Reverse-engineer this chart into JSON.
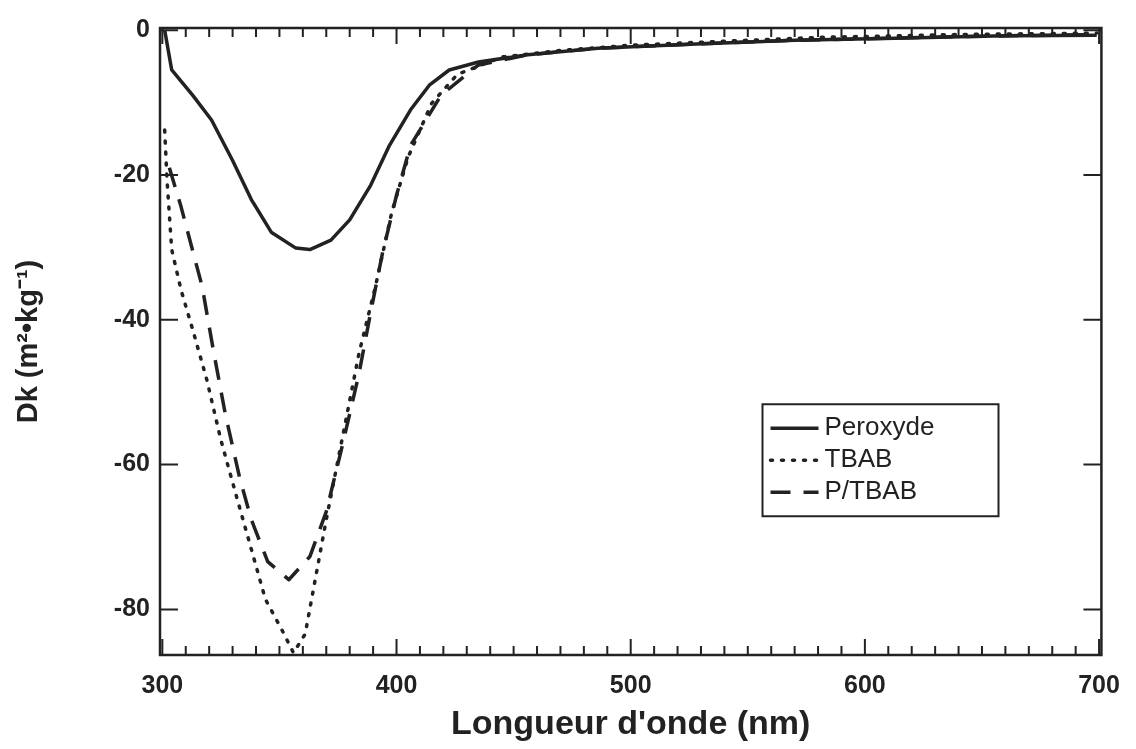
{
  "chart_data": {
    "type": "line",
    "xlabel": "Longueur d'onde (nm)",
    "ylabel": "Dk (m²•kg⁻¹)",
    "xlim": [
      299,
      701
    ],
    "ylim": [
      -86.3,
      0.3
    ],
    "xticks": [
      300,
      {
        "value": 310,
        "label": null
      },
      {
        "value": 320,
        "label": null
      },
      {
        "value": 330,
        "label": null
      },
      {
        "value": 340,
        "label": null
      },
      {
        "value": 350,
        "label": null
      },
      {
        "value": 360,
        "label": null
      },
      {
        "value": 370,
        "label": null
      },
      {
        "value": 380,
        "label": null
      },
      {
        "value": 390,
        "label": null
      },
      400,
      {
        "value": 410,
        "label": null
      },
      {
        "value": 420,
        "label": null
      },
      {
        "value": 430,
        "label": null
      },
      {
        "value": 440,
        "label": null
      },
      {
        "value": 450,
        "label": null
      },
      {
        "value": 460,
        "label": null
      },
      {
        "value": 470,
        "label": null
      },
      {
        "value": 480,
        "label": null
      },
      {
        "value": 490,
        "label": null
      },
      500,
      {
        "value": 510,
        "label": null
      },
      {
        "value": 520,
        "label": null
      },
      {
        "value": 530,
        "label": null
      },
      {
        "value": 540,
        "label": null
      },
      {
        "value": 550,
        "label": null
      },
      {
        "value": 560,
        "label": null
      },
      {
        "value": 570,
        "label": null
      },
      {
        "value": 580,
        "label": null
      },
      {
        "value": 590,
        "label": null
      },
      600,
      {
        "value": 610,
        "label": null
      },
      {
        "value": 620,
        "label": null
      },
      {
        "value": 630,
        "label": null
      },
      {
        "value": 640,
        "label": null
      },
      {
        "value": 650,
        "label": null
      },
      {
        "value": 660,
        "label": null
      },
      {
        "value": 670,
        "label": null
      },
      {
        "value": 680,
        "label": null
      },
      {
        "value": 690,
        "label": null
      },
      700
    ],
    "yticks": [
      -80,
      -60,
      -40,
      -20,
      0
    ],
    "grid": false,
    "legend": "bottom right",
    "marker": "none",
    "series": [
      {
        "name": "Peroxyde",
        "color": "#222222",
        "line_style": "solid",
        "x": [
          301,
          304,
          313,
          321,
          330,
          338,
          346.5,
          357,
          363,
          372,
          380,
          389,
          397,
          406,
          414,
          422.5,
          435,
          456,
          486,
          528,
          570,
          613,
          655,
          699
        ],
        "values": [
          0,
          -5.5,
          -9,
          -12.4,
          -18,
          -23.4,
          -27.9,
          -30.1,
          -30.3,
          -29,
          -26.2,
          -21.4,
          -15.9,
          -11,
          -7.6,
          -5.5,
          -4.4,
          -3.4,
          -2.5,
          -1.9,
          -1.4,
          -1.1,
          -0.8,
          -0.7
        ]
      },
      {
        "name": "TBAB",
        "color": "#222222",
        "line_style": "dotted",
        "x": [
          301,
          302,
          304,
          308,
          313,
          319,
          325,
          332,
          338,
          344,
          351,
          356,
          361,
          370,
          377,
          384,
          391,
          398,
          405,
          415,
          426,
          445,
          470,
          499,
          527,
          580,
          640,
          699
        ],
        "values": [
          -13.8,
          -20.7,
          -30.3,
          -35.9,
          -41.4,
          -48.3,
          -56.6,
          -64.8,
          -71.7,
          -78.6,
          -82.8,
          -86,
          -83.4,
          -67.6,
          -56.1,
          -44.6,
          -35.4,
          -25.1,
          -17.5,
          -10.1,
          -6.1,
          -3.7,
          -2.8,
          -2.1,
          -1.7,
          -1,
          -0.6,
          -0.4
        ]
      },
      {
        "name": "P/TBAB",
        "color": "#222222",
        "line_style": "dashed",
        "x": [
          303,
          308,
          317,
          322,
          327,
          333,
          338,
          345,
          354,
          363,
          370,
          377,
          384,
          389,
          394,
          400,
          406,
          419,
          430,
          435,
          456,
          486,
          528,
          570,
          613,
          655,
          699
        ],
        "values": [
          -19,
          -24.4,
          -35.4,
          -44.6,
          -53.2,
          -61.8,
          -67.6,
          -73.4,
          -75.9,
          -72.7,
          -66.5,
          -57.2,
          -47.4,
          -38.9,
          -30.8,
          -22.8,
          -15.9,
          -9,
          -6.1,
          -4.8,
          -3.4,
          -2.5,
          -1.9,
          -1.4,
          -1.1,
          -0.8,
          -0.6
        ]
      }
    ]
  }
}
